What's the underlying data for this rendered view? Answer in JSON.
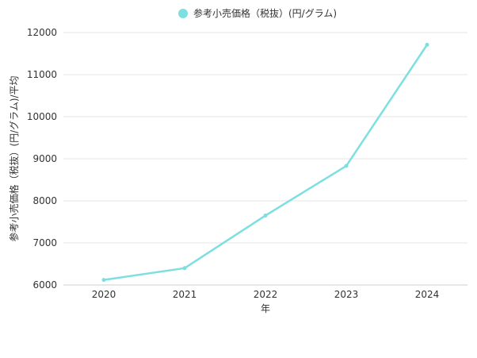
{
  "chart_data": {
    "type": "line",
    "title": "",
    "xlabel": "年",
    "ylabel": "参考小売価格（税抜）(円/グラム)/平均",
    "categories": [
      "2020",
      "2021",
      "2022",
      "2023",
      "2024"
    ],
    "series": [
      {
        "name": "参考小売価格（税抜）(円/グラム)",
        "values": [
          6120,
          6400,
          7650,
          8830,
          11710
        ],
        "color": "#7ddfe0"
      }
    ],
    "ylim": [
      6000,
      12000
    ],
    "yticks": [
      6000,
      7000,
      8000,
      9000,
      10000,
      11000,
      12000
    ],
    "grid": true,
    "legend_position": "top-center"
  }
}
